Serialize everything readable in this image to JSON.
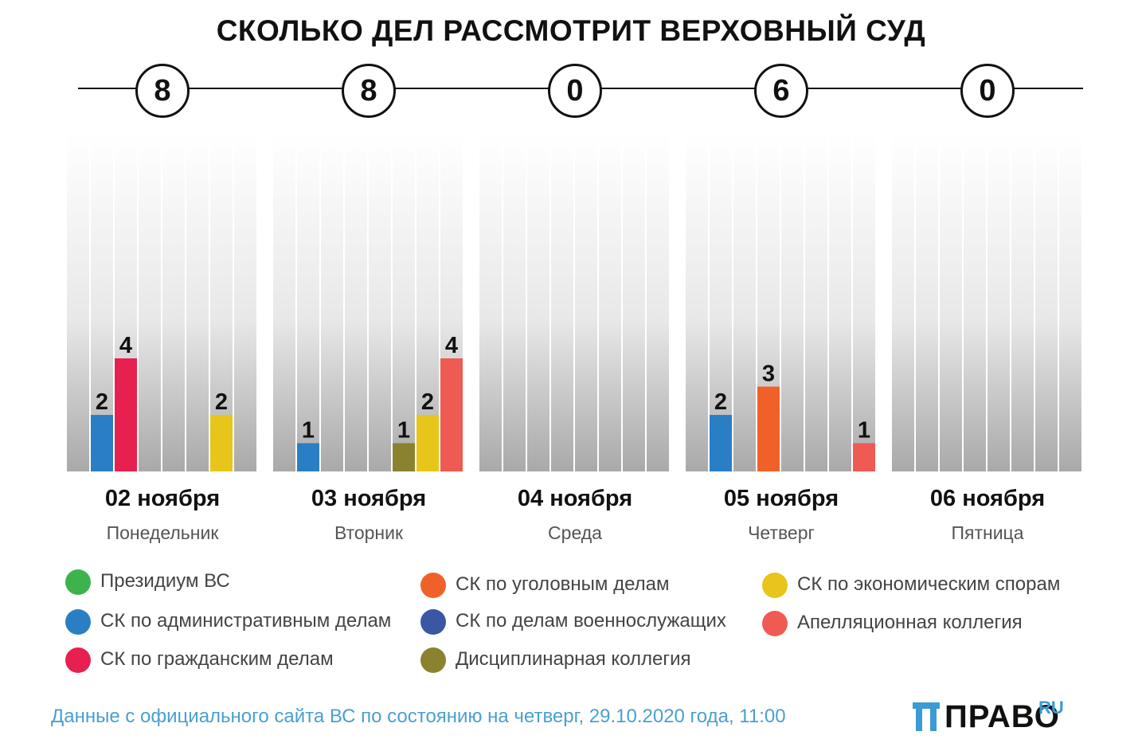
{
  "title": "СКОЛЬКО ДЕЛ РАССМОТРИТ ВЕРХОВНЫЙ СУД",
  "chart_data": {
    "type": "bar",
    "title": "СКОЛЬКО ДЕЛ РАССМОТРИТ ВЕРХОВНЫЙ СУД",
    "ylim": [
      0,
      12
    ],
    "categories": [
      "02 ноября",
      "03 ноября",
      "04 ноября",
      "05 ноября",
      "06 ноября"
    ],
    "weekdays": [
      "Понедельник",
      "Вторник",
      "Среда",
      "Четверг",
      "Пятница"
    ],
    "totals": [
      8,
      8,
      0,
      6,
      0
    ],
    "slots": [
      "Президиум ВС",
      "СК по административным делам",
      "СК по гражданским делам",
      "СК по уголовным делам",
      "СК по делам военнослужащих",
      "Дисциплинарная коллегия",
      "СК по экономическим спорам",
      "Апелляционная коллегия"
    ],
    "series": [
      {
        "name": "Президиум ВС",
        "color": "#3cb44b",
        "values": [
          0,
          0,
          0,
          0,
          0
        ]
      },
      {
        "name": "СК по административным делам",
        "color": "#2a7fc4",
        "values": [
          2,
          1,
          0,
          2,
          0
        ]
      },
      {
        "name": "СК по гражданским делам",
        "color": "#e8204f",
        "values": [
          4,
          0,
          0,
          0,
          0
        ]
      },
      {
        "name": "СК по уголовным делам",
        "color": "#f0612a",
        "values": [
          0,
          0,
          0,
          3,
          0
        ]
      },
      {
        "name": "СК по делам военнослужащих",
        "color": "#3a56a5",
        "values": [
          0,
          0,
          0,
          0,
          0
        ]
      },
      {
        "name": "Дисциплинарная коллегия",
        "color": "#8b8230",
        "values": [
          0,
          1,
          0,
          0,
          0
        ]
      },
      {
        "name": "СК по экономическим спорам",
        "color": "#e8c51a",
        "values": [
          2,
          2,
          0,
          0,
          0
        ]
      },
      {
        "name": "Апелляционная коллегия",
        "color": "#ef5a52",
        "values": [
          0,
          4,
          0,
          1,
          0
        ]
      }
    ]
  },
  "legend": [
    {
      "label": "Президиум ВС",
      "color": "#3cb44b"
    },
    {
      "label": "СК по административным делам",
      "color": "#2a7fc4"
    },
    {
      "label": "СК по гражданским делам",
      "color": "#e8204f"
    },
    {
      "label": "СК по уголовным делам",
      "color": "#f0612a"
    },
    {
      "label": "СК по делам военнослужащих",
      "color": "#3a56a5"
    },
    {
      "label": "Дисциплинарная коллегия",
      "color": "#8b8230"
    },
    {
      "label": "СК по экономическим спорам",
      "color": "#e8c51a"
    },
    {
      "label": "Апелляционная коллегия",
      "color": "#ef5a52"
    }
  ],
  "source": "Данные с официального сайта ВС по состоянию на четверг, 29.10.2020 года, 11:00",
  "logo": {
    "word": "ПРАВО",
    "suffix": "RU",
    "accent": "#3a9bd5"
  }
}
